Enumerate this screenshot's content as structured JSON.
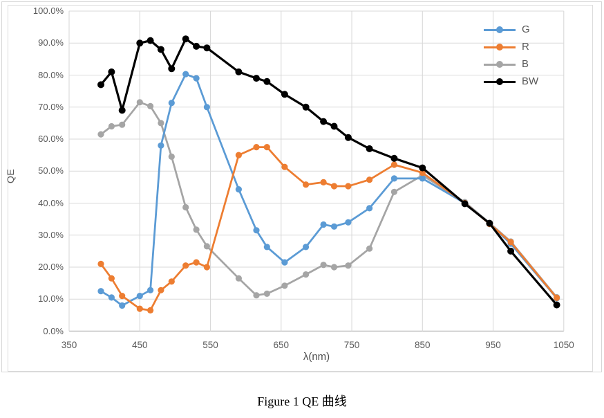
{
  "caption": "Figure 1 QE 曲线",
  "chart_data": {
    "type": "line",
    "title": "",
    "xlabel": "λ(nm)",
    "ylabel": "QE",
    "xlim": [
      350,
      1050
    ],
    "ylim": [
      0,
      100
    ],
    "grid": true,
    "grid_color": "#d9d9d9",
    "axis_line_color": "#bfbfbf",
    "axis_text_color": "#595959",
    "legend_position": "top-right",
    "x_ticks": [
      "350",
      "450",
      "550",
      "650",
      "750",
      "850",
      "950",
      "1050"
    ],
    "x_tick_values": [
      350,
      450,
      550,
      650,
      750,
      850,
      950,
      1050
    ],
    "y_ticks": [
      "0.0%",
      "10.0%",
      "20.0%",
      "30.0%",
      "40.0%",
      "50.0%",
      "60.0%",
      "70.0%",
      "80.0%",
      "90.0%",
      "100.0%"
    ],
    "y_tick_values": [
      0,
      10,
      20,
      30,
      40,
      50,
      60,
      70,
      80,
      90,
      100
    ],
    "x": [
      395,
      410,
      425,
      450,
      465,
      480,
      495,
      515,
      530,
      545,
      590,
      615,
      630,
      655,
      685,
      710,
      725,
      745,
      775,
      810,
      850,
      910,
      945,
      975,
      1040
    ],
    "series": [
      {
        "name": "G",
        "color": "#5b9bd5",
        "line_width": 2.75,
        "marker_radius": 4.6,
        "values": [
          12.5,
          10.5,
          8.0,
          11.0,
          12.8,
          58.0,
          71.3,
          80.3,
          79.0,
          70.0,
          44.3,
          31.5,
          26.3,
          21.5,
          26.3,
          33.3,
          32.7,
          34.0,
          38.4,
          47.7,
          47.7,
          40.0,
          33.5,
          27.3,
          10.3
        ]
      },
      {
        "name": "R",
        "color": "#ed7d31",
        "line_width": 2.75,
        "marker_radius": 4.6,
        "values": [
          21.0,
          16.5,
          11.0,
          7.0,
          6.5,
          12.8,
          15.5,
          20.5,
          21.5,
          20.0,
          55.0,
          57.5,
          57.5,
          51.3,
          45.8,
          46.5,
          45.3,
          45.3,
          47.3,
          52.0,
          49.5,
          40.0,
          33.5,
          27.8,
          10.4
        ]
      },
      {
        "name": "B",
        "color": "#a5a5a5",
        "line_width": 2.75,
        "marker_radius": 4.6,
        "values": [
          61.5,
          64.0,
          64.5,
          71.5,
          70.3,
          65.0,
          54.5,
          38.7,
          31.7,
          26.5,
          16.5,
          11.2,
          11.7,
          14.2,
          17.7,
          20.7,
          20.0,
          20.5,
          25.8,
          43.5,
          48.7,
          40.3,
          33.8,
          28.0,
          10.6
        ]
      },
      {
        "name": "BW",
        "color": "#000000",
        "line_width": 3.2,
        "marker_radius": 5.0,
        "values": [
          77.0,
          81.0,
          69.0,
          90.0,
          90.8,
          88.0,
          82.0,
          91.3,
          89.0,
          88.5,
          81.0,
          79.0,
          78.0,
          74.0,
          70.0,
          65.5,
          64.0,
          60.5,
          57.0,
          54.0,
          51.0,
          39.8,
          33.7,
          25.0,
          8.2
        ]
      }
    ],
    "draw_order": [
      "B",
      "G",
      "R",
      "BW"
    ],
    "legend_order": [
      "G",
      "R",
      "B",
      "BW"
    ]
  }
}
